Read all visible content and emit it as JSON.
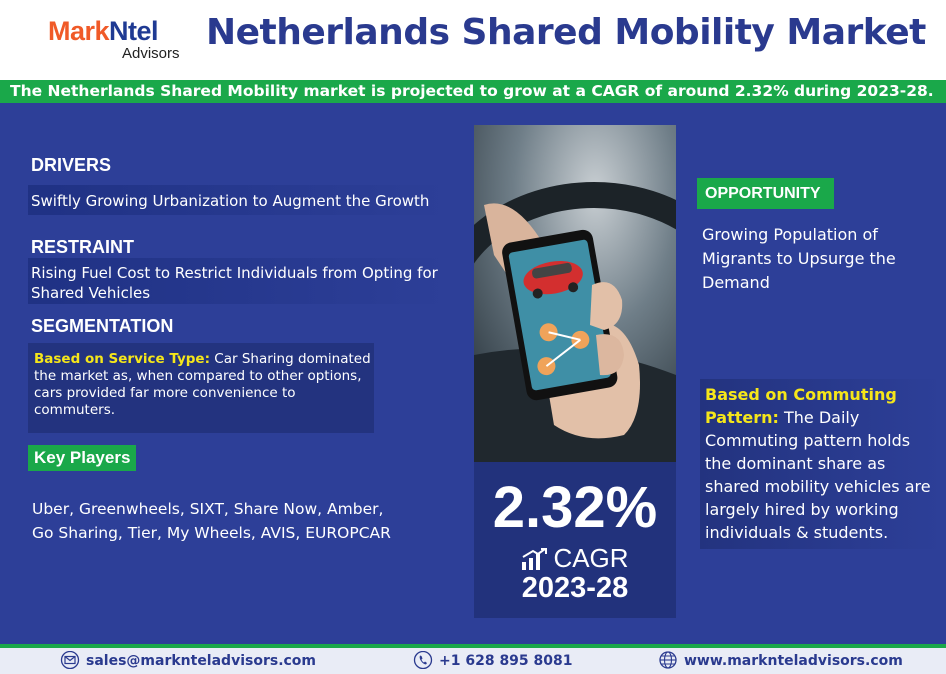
{
  "logo": {
    "brand_part1": "Mark",
    "brand_part2": "Ntel",
    "sub": "Advisors"
  },
  "title": "Netherlands Shared Mobility Market",
  "banner": "The Netherlands Shared Mobility market is projected to grow at a CAGR of around 2.32% during  2023-28.",
  "drivers": {
    "heading": "DRIVERS",
    "text": "Swiftly Growing Urbanization to Augment the Growth"
  },
  "restraint": {
    "heading": "RESTRAINT",
    "text": "Rising Fuel Cost to Restrict Individuals from Opting for Shared Vehicles"
  },
  "segmentation": {
    "heading": "SEGMENTATION",
    "label": "Based on Service Type:",
    "text": " Car Sharing dominated the market as, when compared to other options, cars provided far more convenience to commuters."
  },
  "key_players": {
    "heading": "Key Players",
    "line1": "Uber, Greenwheels, SIXT, Share Now, Amber,",
    "line2": "Go Sharing, Tier, My Wheels, AVIS, EUROPCAR"
  },
  "stat": {
    "value": "2.32%",
    "label": "CAGR",
    "years": "2023-28"
  },
  "opportunity": {
    "heading": "OPPORTUNITY",
    "text": "Growing Population of Migrants to Upsurge the Demand"
  },
  "commuting": {
    "label": "Based on Commuting Pattern:",
    "text": " The Daily Commuting pattern holds the dominant share as shared mobility vehicles are largely hired by working individuals & students."
  },
  "footer": {
    "email": "sales@marknteladvisors.com",
    "phone": "+1 628 895 8081",
    "website": "www.marknteladvisors.com"
  },
  "icons": [
    "mail-icon",
    "phone-icon",
    "globe-icon",
    "growth-chart-icon"
  ],
  "colors": {
    "panel": "#2d3f98",
    "accent_green": "#1aa84a",
    "highlight_yellow": "#f5e61a",
    "title_blue": "#2a3a8f",
    "brand_orange": "#f05a28"
  }
}
